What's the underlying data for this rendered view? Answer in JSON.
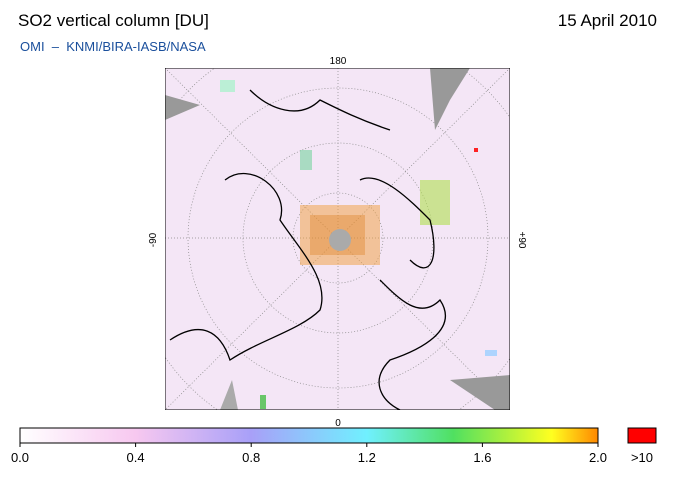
{
  "header": {
    "title": "SO2 vertical column [DU]",
    "date": "15 April 2010",
    "credit": "OMI  –  KNMI/BIRA-IASB/NASA"
  },
  "map": {
    "labels": {
      "top": "180",
      "left": "-90",
      "right": "+90",
      "bottom": "0"
    }
  },
  "colorbar": {
    "range": [
      0,
      2
    ],
    "ticks": [
      {
        "value": 0,
        "label": "0.0"
      },
      {
        "value": 0.4,
        "label": "0.4"
      },
      {
        "value": 0.8,
        "label": "0.8"
      },
      {
        "value": 1.2,
        "label": "1.2"
      },
      {
        "value": 1.6,
        "label": "1.6"
      },
      {
        "value": 2,
        "label": "2.0"
      }
    ],
    "overflow": ">10"
  }
}
